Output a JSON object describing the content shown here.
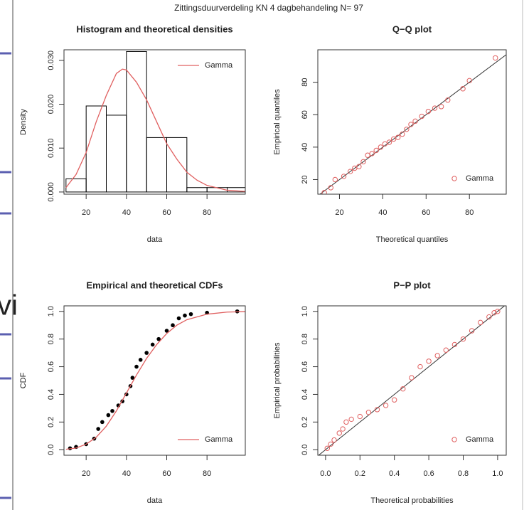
{
  "title": "Zittingsduurverdeling  KN 4   dagbehandeling  N= 97",
  "background_text": "vi",
  "chart_data": [
    {
      "type": "histogram",
      "title": "Histogram and theoretical densities",
      "xlabel": "data",
      "ylabel": "Density",
      "bins": [
        10,
        20,
        30,
        40,
        50,
        60,
        70,
        80,
        90,
        100
      ],
      "values": [
        0.003,
        0.0196,
        0.0175,
        0.032,
        0.0124,
        0.0124,
        0.001,
        0.001,
        0.001
      ],
      "bar_color": "#000000",
      "series": [
        {
          "name": "Gamma",
          "color": "#e06060",
          "style": "line",
          "x": [
            10,
            15,
            20,
            25,
            30,
            35,
            38,
            40,
            45,
            50,
            55,
            60,
            65,
            70,
            75,
            80,
            90,
            100
          ],
          "values": [
            0.001,
            0.004,
            0.009,
            0.016,
            0.022,
            0.027,
            0.028,
            0.0278,
            0.025,
            0.021,
            0.016,
            0.011,
            0.0075,
            0.0045,
            0.0027,
            0.0015,
            0.0004,
            0.0001
          ]
        }
      ],
      "xlim": [
        9,
        99
      ],
      "ylim": [
        -0.0005,
        0.0324
      ],
      "xticks": [
        20,
        40,
        60,
        80
      ],
      "yticks": [
        {
          "value": 0,
          "label": "0.000"
        },
        {
          "value": 0.01,
          "label": "0.010"
        },
        {
          "value": 0.02,
          "label": "0.020"
        },
        {
          "value": 0.03,
          "label": "0.030"
        }
      ],
      "legend": "top-right"
    },
    {
      "type": "scatter",
      "title": "Q−Q plot",
      "xlabel": "Theoretical quantiles",
      "ylabel": "Empirical quantiles",
      "reference_line": true,
      "series": [
        {
          "name": "Gamma",
          "color": "#e06060",
          "style": "points",
          "x": [
            13,
            16,
            18,
            22,
            25,
            27,
            29,
            31,
            33,
            35,
            37,
            39,
            41,
            43,
            45,
            47,
            49,
            51,
            53,
            55,
            58,
            61,
            64,
            67,
            70,
            77,
            80,
            92
          ],
          "values": [
            12,
            15,
            20,
            22,
            25,
            27,
            28,
            31,
            35,
            36,
            38,
            40,
            42,
            43,
            45,
            46,
            48,
            51,
            54,
            56,
            59,
            62,
            64,
            65,
            69,
            76,
            81,
            95
          ]
        }
      ],
      "xlim": [
        10,
        97
      ],
      "ylim": [
        11,
        100
      ],
      "xticks": [
        20,
        40,
        60,
        80
      ],
      "yticks": [
        20,
        40,
        60,
        80
      ],
      "legend": "bottom-right"
    },
    {
      "type": "scatter",
      "title": "Empirical and theoretical CDFs",
      "xlabel": "data",
      "ylabel": "CDF",
      "points": {
        "color": "#000000",
        "x": [
          12,
          15,
          20,
          24,
          26,
          28,
          31,
          33,
          36,
          38,
          40,
          42,
          43,
          45,
          47,
          50,
          53,
          56,
          60,
          63,
          66,
          69,
          72,
          80,
          95
        ],
        "values": [
          0.01,
          0.02,
          0.04,
          0.08,
          0.15,
          0.2,
          0.25,
          0.28,
          0.32,
          0.35,
          0.4,
          0.46,
          0.52,
          0.6,
          0.65,
          0.7,
          0.76,
          0.8,
          0.86,
          0.9,
          0.95,
          0.97,
          0.98,
          0.99,
          1.0
        ]
      },
      "series": [
        {
          "name": "Gamma",
          "color": "#e06060",
          "style": "line",
          "x": [
            10,
            15,
            20,
            25,
            30,
            35,
            40,
            45,
            50,
            55,
            60,
            65,
            70,
            80,
            90,
            100
          ],
          "values": [
            0.003,
            0.012,
            0.04,
            0.09,
            0.17,
            0.28,
            0.41,
            0.54,
            0.66,
            0.76,
            0.84,
            0.9,
            0.94,
            0.98,
            0.995,
            0.999
          ]
        }
      ],
      "xlim": [
        9,
        99
      ],
      "ylim": [
        -0.04,
        1.04
      ],
      "xticks": [
        20,
        40,
        60,
        80
      ],
      "yticks": [
        {
          "value": 0,
          "label": "0.0"
        },
        0.2,
        0.4,
        0.6,
        0.8,
        {
          "value": 1,
          "label": "1.0"
        }
      ],
      "legend": "bottom-right"
    },
    {
      "type": "scatter",
      "title": "P−P plot",
      "xlabel": "Theoretical probabilities",
      "ylabel": "Empirical probabilities",
      "reference_line": true,
      "series": [
        {
          "name": "Gamma",
          "color": "#e06060",
          "style": "points",
          "x": [
            0.01,
            0.03,
            0.05,
            0.08,
            0.1,
            0.12,
            0.15,
            0.2,
            0.25,
            0.3,
            0.35,
            0.4,
            0.45,
            0.5,
            0.55,
            0.6,
            0.65,
            0.7,
            0.75,
            0.8,
            0.85,
            0.9,
            0.95,
            0.98,
            1.0
          ],
          "values": [
            0.01,
            0.04,
            0.07,
            0.12,
            0.15,
            0.2,
            0.22,
            0.24,
            0.27,
            0.29,
            0.32,
            0.36,
            0.44,
            0.52,
            0.6,
            0.64,
            0.68,
            0.72,
            0.76,
            0.8,
            0.86,
            0.92,
            0.96,
            0.99,
            1.0
          ]
        }
      ],
      "xlim": [
        -0.045,
        1.05
      ],
      "ylim": [
        -0.04,
        1.04
      ],
      "xticks": [
        {
          "value": 0,
          "label": "0.0"
        },
        0.2,
        0.4,
        0.6,
        0.8,
        {
          "value": 1,
          "label": "1.0"
        }
      ],
      "yticks": [
        {
          "value": 0,
          "label": "0.0"
        },
        0.2,
        0.4,
        0.6,
        0.8,
        {
          "value": 1,
          "label": "1.0"
        }
      ],
      "legend": "bottom-right"
    }
  ]
}
